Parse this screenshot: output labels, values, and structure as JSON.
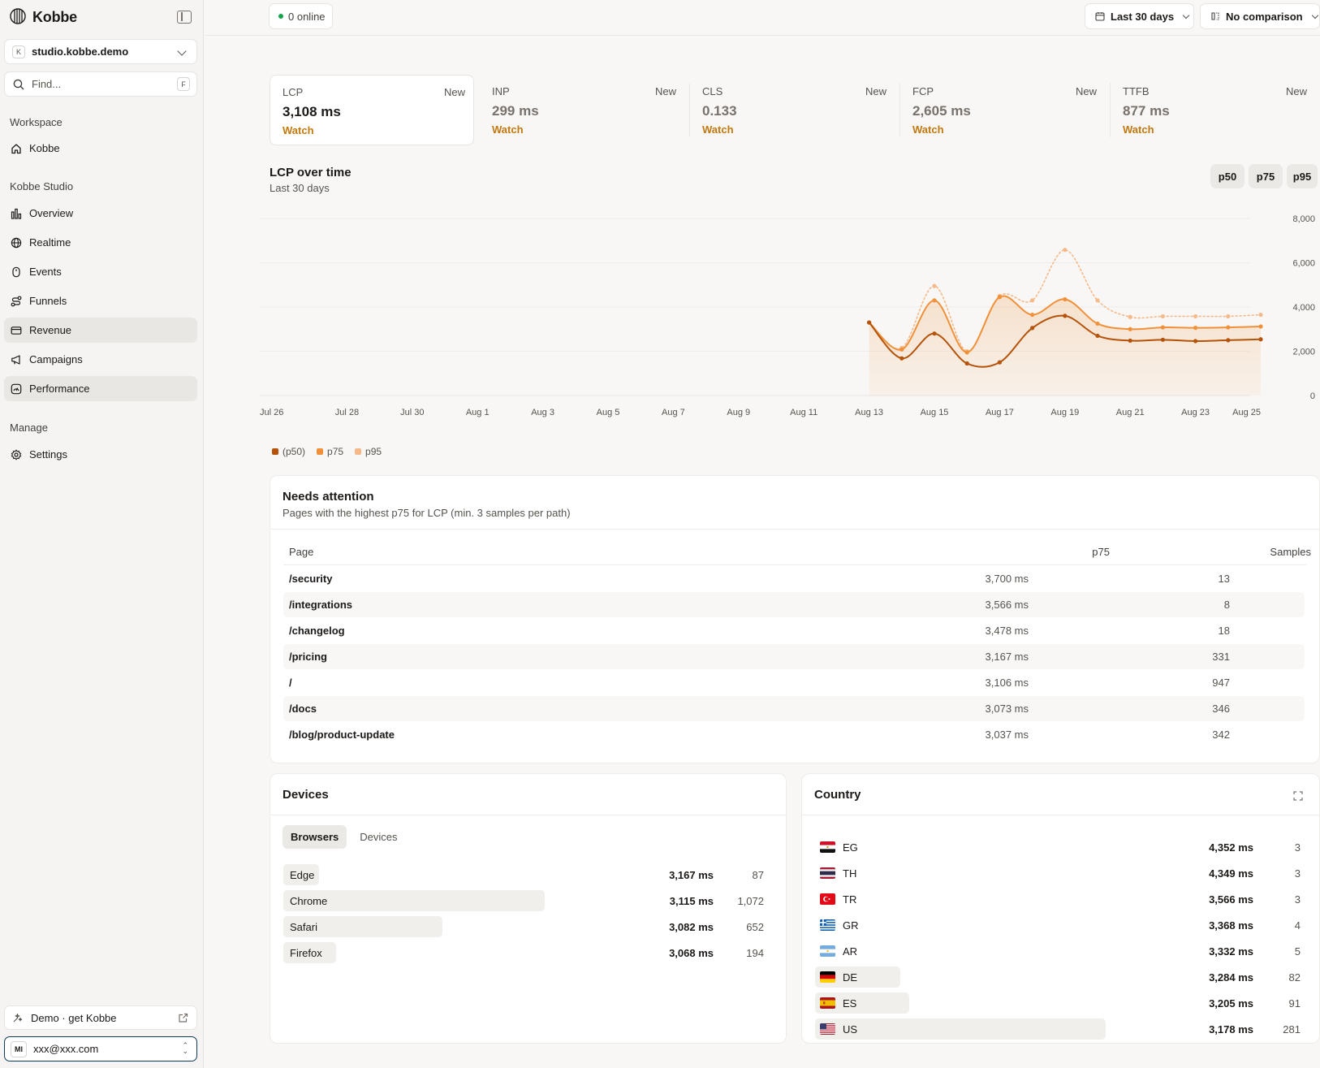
{
  "sidebar": {
    "brand": "Kobbe",
    "site": {
      "initial": "K",
      "name": "studio.kobbe.demo"
    },
    "find": {
      "placeholder": "Find...",
      "shortcut": "F"
    },
    "sections": {
      "workspace": "Workspace",
      "studio": "Kobbe Studio",
      "manage": "Manage"
    },
    "workspace_items": [
      {
        "label": "Kobbe",
        "icon": "home-icon"
      }
    ],
    "studio_items": [
      {
        "label": "Overview",
        "icon": "bar-chart-icon"
      },
      {
        "label": "Realtime",
        "icon": "globe-icon"
      },
      {
        "label": "Events",
        "icon": "mouse-icon"
      },
      {
        "label": "Funnels",
        "icon": "route-icon"
      },
      {
        "label": "Revenue",
        "icon": "credit-card-icon"
      },
      {
        "label": "Campaigns",
        "icon": "megaphone-icon"
      },
      {
        "label": "Performance",
        "icon": "gauge-icon"
      }
    ],
    "manage_items": [
      {
        "label": "Settings",
        "icon": "gear-icon"
      }
    ],
    "demo": {
      "label": "Demo · get Kobbe"
    },
    "user": {
      "initials": "MI",
      "email": "xxx@xxx.com"
    }
  },
  "topbar": {
    "online": "0 online",
    "range": "Last 30 days",
    "comparison": "No comparison"
  },
  "kpis": [
    {
      "name": "LCP",
      "badge": "New",
      "value": "3,108 ms",
      "status": "Watch"
    },
    {
      "name": "INP",
      "badge": "New",
      "value": "299 ms",
      "status": "Watch"
    },
    {
      "name": "CLS",
      "badge": "New",
      "value": "0.133",
      "status": "Watch"
    },
    {
      "name": "FCP",
      "badge": "New",
      "value": "2,605 ms",
      "status": "Watch"
    },
    {
      "name": "TTFB",
      "badge": "New",
      "value": "877 ms",
      "status": "Watch"
    }
  ],
  "chart_section": {
    "title": "LCP over time",
    "subtitle": "Last 30 days",
    "buttons": [
      "p50",
      "p75",
      "p95"
    ]
  },
  "chart_data": {
    "type": "line",
    "x_ticks": [
      "Jul 26",
      "Jul 28",
      "Jul 30",
      "Aug 1",
      "Aug 3",
      "Aug 5",
      "Aug 7",
      "Aug 9",
      "Aug 11",
      "Aug 13",
      "Aug 15",
      "Aug 17",
      "Aug 19",
      "Aug 21",
      "Aug 23",
      "Aug 25"
    ],
    "x": [
      "Aug 13",
      "Aug 14",
      "Aug 15",
      "Aug 16",
      "Aug 17",
      "Aug 18",
      "Aug 19",
      "Aug 20",
      "Aug 21",
      "Aug 22",
      "Aug 23",
      "Aug 24",
      "Aug 25"
    ],
    "y_ticks": [
      "0",
      "2,000",
      "4,000",
      "6,000",
      "8,000"
    ],
    "ylim": [
      0,
      8000
    ],
    "grid": true,
    "legend_position": "bottom-left",
    "series": [
      {
        "name": "(p50)",
        "color": "#b45309",
        "style": "solid",
        "values": [
          3300,
          1680,
          2800,
          1450,
          1500,
          3050,
          3600,
          2700,
          2480,
          2520,
          2460,
          2500,
          2540
        ]
      },
      {
        "name": "p75",
        "color": "#f0913a",
        "style": "solid",
        "values": [
          3300,
          2080,
          4300,
          1950,
          4450,
          3650,
          4350,
          3250,
          3000,
          3080,
          3060,
          3080,
          3120
        ]
      },
      {
        "name": "p95",
        "color": "#f5b98a",
        "style": "dotted",
        "values": [
          3300,
          2150,
          4950,
          2000,
          4500,
          4300,
          6580,
          4300,
          3550,
          3580,
          3580,
          3580,
          3650
        ]
      }
    ]
  },
  "attention": {
    "title": "Needs attention",
    "subtitle": "Pages with the highest p75 for LCP (min. 3 samples per path)",
    "columns": {
      "page": "Page",
      "p75": "p75",
      "samples": "Samples"
    },
    "rows": [
      {
        "page": "/security",
        "p75": "3,700 ms",
        "samples": "13"
      },
      {
        "page": "/integrations",
        "p75": "3,566 ms",
        "samples": "8"
      },
      {
        "page": "/changelog",
        "p75": "3,478 ms",
        "samples": "18"
      },
      {
        "page": "/pricing",
        "p75": "3,167 ms",
        "samples": "331"
      },
      {
        "page": "/",
        "p75": "3,106 ms",
        "samples": "947"
      },
      {
        "page": "/docs",
        "p75": "3,073 ms",
        "samples": "346"
      },
      {
        "page": "/blog/product-update",
        "p75": "3,037 ms",
        "samples": "342"
      }
    ]
  },
  "devices": {
    "title": "Devices",
    "tabs": [
      "Browsers",
      "Devices"
    ],
    "rows": [
      {
        "name": "Edge",
        "value": "3,167 ms",
        "count": "87",
        "share": 0.081
      },
      {
        "name": "Chrome",
        "value": "3,115 ms",
        "count": "1,072",
        "share": 1.0
      },
      {
        "name": "Safari",
        "value": "3,082 ms",
        "count": "652",
        "share": 0.608
      },
      {
        "name": "Firefox",
        "value": "3,068 ms",
        "count": "194",
        "share": 0.181
      }
    ]
  },
  "country": {
    "title": "Country",
    "rows": [
      {
        "code": "EG",
        "value": "4,352 ms",
        "count": "3",
        "share": 0.011
      },
      {
        "code": "TH",
        "value": "4,349 ms",
        "count": "3",
        "share": 0.011
      },
      {
        "code": "TR",
        "value": "3,566 ms",
        "count": "3",
        "share": 0.011
      },
      {
        "code": "GR",
        "value": "3,368 ms",
        "count": "4",
        "share": 0.014
      },
      {
        "code": "AR",
        "value": "3,332 ms",
        "count": "5",
        "share": 0.018
      },
      {
        "code": "DE",
        "value": "3,284 ms",
        "count": "82",
        "share": 0.292
      },
      {
        "code": "ES",
        "value": "3,205 ms",
        "count": "91",
        "share": 0.324
      },
      {
        "code": "US",
        "value": "3,178 ms",
        "count": "281",
        "share": 1.0
      }
    ]
  }
}
